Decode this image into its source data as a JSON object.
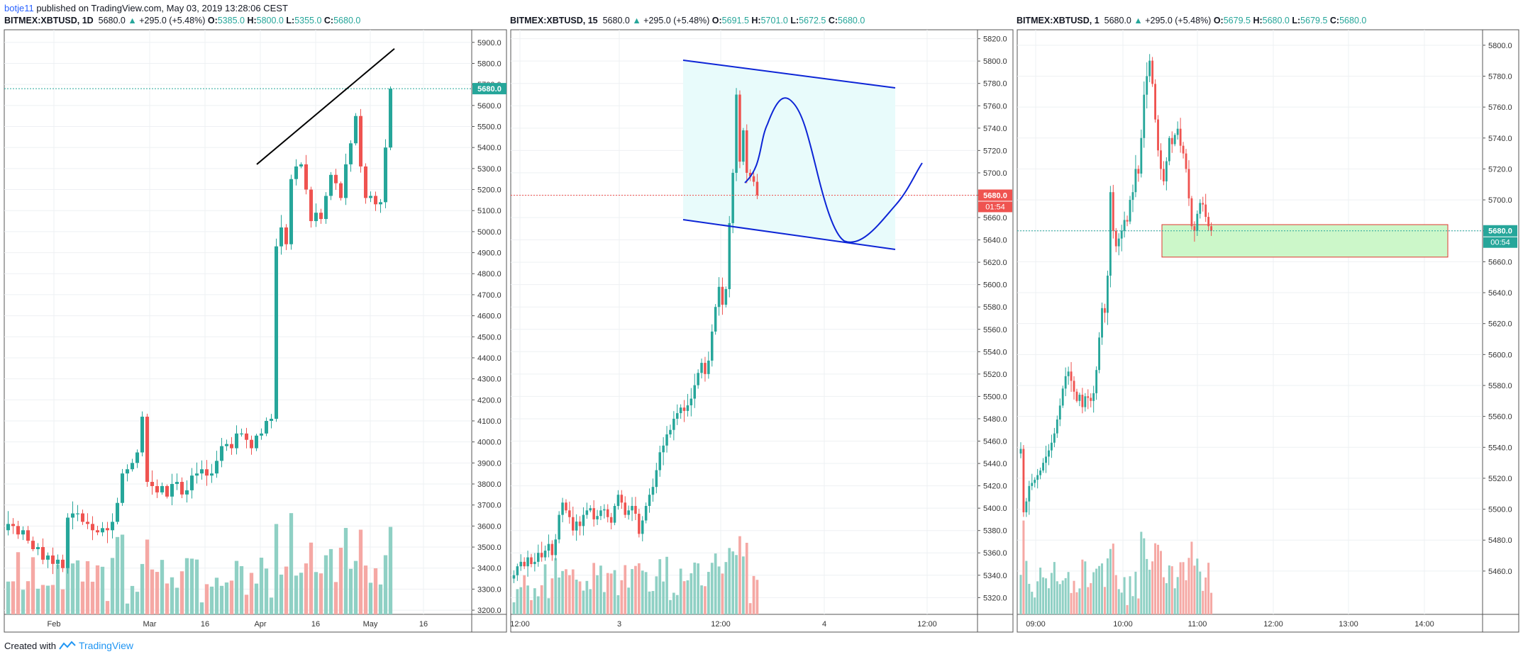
{
  "header": {
    "author": "botje11",
    "published": "published on TradingView.com, May 03, 2019 13:28:06 CEST"
  },
  "footer": {
    "created_with": "Created with",
    "brand": "TradingView"
  },
  "colors": {
    "up": "#26a69a",
    "down": "#ef5350",
    "grid": "#eef0f3",
    "border": "#555555",
    "vol_up": "#8fd0c4",
    "vol_down": "#f5a8a4",
    "trend_line": "#000000",
    "channel_line": "#0d25d6",
    "channel_fill": "#e8fbfb",
    "zone_fill": "#ccf7c9",
    "zone_border": "#e0372f"
  },
  "panels": [
    {
      "id": "daily",
      "symbol": "BITMEX:XBTUSD, 1D",
      "last": "5680.0",
      "arrow": "▲",
      "change": "+295.0 (+5.48%)",
      "o_label": "O:",
      "o": "5385.0",
      "h_label": "H:",
      "h": "5800.0",
      "l_label": "L:",
      "l": "5355.0",
      "c_label": "C:",
      "c": "5680.0",
      "price_badge": "5680.0"
    },
    {
      "id": "m15",
      "symbol": "BITMEX:XBTUSD, 15",
      "last": "5680.0",
      "arrow": "▲",
      "change": "+295.0 (+5.48%)",
      "o_label": "O:",
      "o": "5691.5",
      "h_label": "H:",
      "h": "5701.0",
      "l_label": "L:",
      "l": "5672.5",
      "c_label": "C:",
      "c": "5680.0",
      "price_badge": "5680.0",
      "timer_badge": "01:54"
    },
    {
      "id": "m1",
      "symbol": "BITMEX:XBTUSD, 1",
      "last": "5680.0",
      "arrow": "▲",
      "change": "+295.0 (+5.48%)",
      "o_label": "O:",
      "o": "5679.5",
      "h_label": "H:",
      "h": "5680.0",
      "l_label": "L:",
      "l": "5679.5",
      "c_label": "C:",
      "c": "5680.0",
      "price_badge": "5680.0",
      "timer_badge": "00:54"
    }
  ],
  "chart_data": [
    {
      "type": "candlestick",
      "title": "BITMEX:XBTUSD, 1D",
      "ylim": [
        3180,
        5960
      ],
      "y_ticks": [
        "5900.0",
        "5800.0",
        "5700.0",
        "5600.0",
        "5500.0",
        "5400.0",
        "5300.0",
        "5200.0",
        "5100.0",
        "5000.0",
        "4900.0",
        "4800.0",
        "4700.0",
        "4600.0",
        "4500.0",
        "4400.0",
        "4300.0",
        "4200.0",
        "4100.0",
        "4000.0",
        "3900.0",
        "3800.0",
        "3700.0",
        "3600.0",
        "3500.0",
        "3400.0",
        "3300.0",
        "3200.0"
      ],
      "x_ticks": [
        "Feb",
        "Mar",
        "16",
        "Apr",
        "16",
        "May",
        "16"
      ],
      "last_price": 5680,
      "close": [
        3610,
        3600,
        3560,
        3580,
        3530,
        3490,
        3500,
        3440,
        3460,
        3420,
        3440,
        3400,
        3640,
        3660,
        3660,
        3620,
        3610,
        3580,
        3570,
        3590,
        3580,
        3620,
        3710,
        3850,
        3870,
        3900,
        3950,
        4120,
        3810,
        3790,
        3760,
        3790,
        3740,
        3800,
        3810,
        3750,
        3770,
        3840,
        3850,
        3870,
        3840,
        3850,
        3910,
        3980,
        3990,
        3970,
        4040,
        4040,
        4010,
        3970,
        4030,
        4040,
        4100,
        4110,
        4930,
        5020,
        4940,
        5250,
        5310,
        5320,
        5200,
        5050,
        5090,
        5060,
        5170,
        5270,
        5230,
        5160,
        5320,
        5420,
        5550,
        5310,
        5160,
        5170,
        5130,
        5140,
        5400,
        5680
      ]
    },
    {
      "type": "candlestick",
      "title": "BITMEX:XBTUSD, 15",
      "ylim": [
        5305,
        5828
      ],
      "y_ticks": [
        "5820.0",
        "5800.0",
        "5780.0",
        "5760.0",
        "5740.0",
        "5720.0",
        "5700.0",
        "5680.0",
        "5660.0",
        "5640.0",
        "5620.0",
        "5600.0",
        "5580.0",
        "5560.0",
        "5540.0",
        "5520.0",
        "5500.0",
        "5480.0",
        "5460.0",
        "5440.0",
        "5420.0",
        "5400.0",
        "5380.0",
        "5360.0",
        "5340.0",
        "5320.0"
      ],
      "x_ticks": [
        "12:00",
        "3",
        "12:00",
        "4",
        "12:00"
      ],
      "last_price": 5680,
      "close": [
        5340,
        5348,
        5352,
        5348,
        5356,
        5350,
        5352,
        5360,
        5356,
        5362,
        5368,
        5358,
        5372,
        5394,
        5405,
        5398,
        5392,
        5380,
        5388,
        5384,
        5394,
        5398,
        5400,
        5390,
        5393,
        5398,
        5399,
        5392,
        5387,
        5402,
        5412,
        5405,
        5394,
        5398,
        5402,
        5395,
        5377,
        5389,
        5402,
        5412,
        5419,
        5434,
        5450,
        5456,
        5466,
        5470,
        5480,
        5485,
        5490,
        5487,
        5492,
        5498,
        5510,
        5521,
        5530,
        5520,
        5532,
        5558,
        5580,
        5598,
        5582,
        5596,
        5655,
        5700,
        5770,
        5710,
        5738,
        5700,
        5697,
        5692,
        5680
      ]
    },
    {
      "type": "candlestick",
      "title": "BITMEX:XBTUSD, 1",
      "ylim": [
        5432,
        5810
      ],
      "y_ticks": [
        "5800.0",
        "5780.0",
        "5760.0",
        "5740.0",
        "5720.0",
        "5700.0",
        "5680.0",
        "5660.0",
        "5640.0",
        "5620.0",
        "5600.0",
        "5580.0",
        "5560.0",
        "5540.0",
        "5520.0",
        "5500.0",
        "5480.0",
        "5460.0"
      ],
      "x_ticks": [
        "09:00",
        "10:00",
        "11:00",
        "12:00",
        "13:00",
        "14:00"
      ],
      "last_price": 5680,
      "zone": {
        "from": 5663,
        "to": 5684
      },
      "close": [
        5539,
        5498,
        5505,
        5515,
        5517,
        5519,
        5522,
        5525,
        5530,
        5534,
        5538,
        5543,
        5549,
        5558,
        5567,
        5578,
        5586,
        5589,
        5583,
        5576,
        5570,
        5574,
        5566,
        5573,
        5572,
        5570,
        5575,
        5590,
        5611,
        5630,
        5627,
        5651,
        5705,
        5680,
        5670,
        5675,
        5680,
        5687,
        5686,
        5700,
        5705,
        5720,
        5717,
        5740,
        5768,
        5780,
        5790,
        5775,
        5752,
        5732,
        5720,
        5712,
        5725,
        5740,
        5736,
        5742,
        5746,
        5735,
        5730,
        5720,
        5701,
        5683,
        5680,
        5691,
        5698,
        5697,
        5689,
        5683,
        5680
      ]
    }
  ]
}
